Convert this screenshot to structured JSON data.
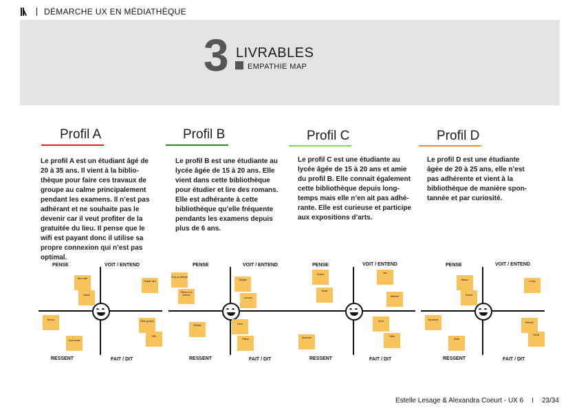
{
  "header": {
    "title": "DÉMARCHE UX EN MÉDIATHÈQUE"
  },
  "banner": {
    "number": "3",
    "title": "LIVRABLES",
    "subtitle": "EMPATHIE MAP"
  },
  "colors": {
    "red": "#e3221b",
    "green": "#2d8a1e",
    "lightgreen": "#7ed957",
    "orange": "#f28c28",
    "note": "#f8c35a"
  },
  "map_labels": {
    "pense": "PENSE",
    "voit": "VOIT / ENTEND",
    "ressent": "RESSENT",
    "fait": "FAIT / DIT"
  },
  "profiles": [
    {
      "title": "Profil A",
      "desc": "Le profil A est un étudiant âgé de\n20 à 35 ans. Il vient à la biblio-\nthèque pour faire ces travaux de\ngroupe au calme principalement\npendant les examens. Il n’est pas\nadhérant et ne souhaite pas le\ndevenir car il veut profiter de la\ngratuitée du lieu. Il pense que le\nwifi est payant donc il utilise sa\npropre connexion qui n’est pas\noptimal."
    },
    {
      "title": "Profil B",
      "desc": "Le profil B est une étudiante au\nlycée âgée de 15 à 20 ans. Elle\nvient dans cette bibliothèque\npour étudier et lire des romans.\nElle est adhérante à cette\nbibliothèque qu’elle fréquente\npendants les examens depuis\nplus de 6 ans."
    },
    {
      "title": "Profil C",
      "desc": "Le profil C est une étudiante au\nlycée âgée de 15 à 20 ans et amie\ndu profil B. Elle connait également\ncette bibliothèque depuis long-\ntemps mais elle n’en ait pas adhé-\nrante. Elle est curieuse et participe\naux expositions d’arts."
    },
    {
      "title": "Profil D",
      "desc": "Le profil D est une étudiante\nâgée de 20 à 25 ans, elle n’est\npas adhérente et vient à la\nbibliothèque de manière spon-\ntannée et par curiosité."
    }
  ],
  "notes": {
    "A": [
      "Pas forcement gratuite",
      "Beaucoup de monde",
      "Peu de place",
      "Toute la salle",
      "Envie de travailler",
      "Prendre avec la wifi",
      "Un café",
      "Nouveaux amis",
      "Ouvert",
      "Objectif examen",
      "Organisé",
      "Cela tonne",
      "Faire groupe",
      "Wifi",
      "Bon café",
      "Calme",
      "Rester tard",
      "Retour"
    ],
    "B": [
      "Des bons",
      "Le lieu",
      "Bon accès",
      "Travail",
      "Livre",
      "Lecture",
      "Un café",
      "Ses amis",
      "Simple",
      "Lecture",
      "Relaxe",
      "Livre",
      "Plaisir",
      "Pour la détente",
      "Retour à la maison"
    ],
    "C": [
      "Curieuse",
      "Nouveauté",
      "Exposition",
      "Arts",
      "Culture",
      "Amis",
      "Calme",
      "Lecture",
      "Lieu",
      "Adhérer",
      "Nouveau",
      "Venir",
      "Visite",
      "Ouvert",
      "Seule"
    ],
    "D": [
      "Passer le temps",
      "Curiosité",
      "Découverte",
      "Nouveau",
      "Lieu",
      "Calme",
      "Idées",
      "Ouvert",
      "Livres",
      "Spontané",
      "Visite",
      "Mesure",
      "Seule",
      "Retour"
    ]
  },
  "footer": {
    "authors": "Estelle Lesage & Alexandra Coeurt - UX 6",
    "separator": "I",
    "page": "23/34"
  }
}
